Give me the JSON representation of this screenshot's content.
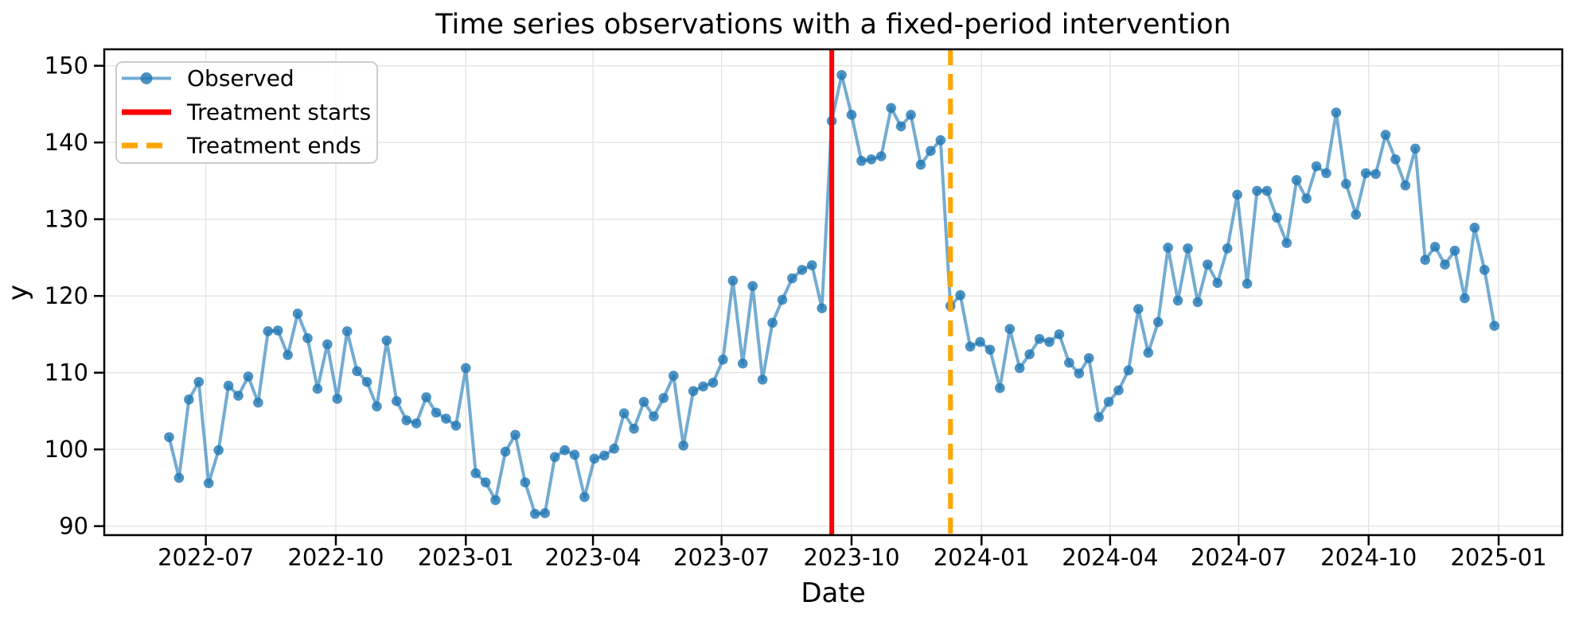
{
  "title": "Time series observations with a fixed-period intervention",
  "axes": {
    "x_label": "Date",
    "y_label": "y",
    "x_ticks": [
      "2022-07",
      "2022-10",
      "2023-01",
      "2023-04",
      "2023-07",
      "2023-10",
      "2024-01",
      "2024-04",
      "2024-07",
      "2024-10",
      "2025-01"
    ],
    "y_ticks": [
      90,
      100,
      110,
      120,
      130,
      140,
      150
    ]
  },
  "legend": {
    "items": [
      {
        "label": "Observed",
        "color": "#1f77b4",
        "style": "line-with-marker"
      },
      {
        "label": "Treatment starts",
        "color": "#ff0000",
        "style": "solid"
      },
      {
        "label": "Treatment ends",
        "color": "#ffa500",
        "style": "dashed"
      }
    ]
  },
  "chart_data": {
    "type": "line",
    "title": "Time series observations with a fixed-period intervention",
    "xlabel": "Date",
    "ylabel": "y",
    "grid": true,
    "legend_position": "upper left",
    "x_start_date": "2022-06-05",
    "x_freq_days": 7,
    "x_tick_labels": [
      "2022-07",
      "2022-10",
      "2023-01",
      "2023-04",
      "2023-07",
      "2023-10",
      "2024-01",
      "2024-04",
      "2024-07",
      "2024-10",
      "2025-01"
    ],
    "y_tick_values": [
      90,
      100,
      110,
      120,
      130,
      140,
      150
    ],
    "ylim": [
      88.8,
      152.1
    ],
    "series": [
      {
        "name": "Observed",
        "color": "#1f77b4",
        "values": [
          101.6,
          96.3,
          106.5,
          108.8,
          95.6,
          99.9,
          108.3,
          107.0,
          109.5,
          106.1,
          115.4,
          115.5,
          112.3,
          117.7,
          114.5,
          107.9,
          113.7,
          106.6,
          115.4,
          110.2,
          108.8,
          105.6,
          114.2,
          106.3,
          103.8,
          103.4,
          106.8,
          104.8,
          104.0,
          103.1,
          110.6,
          96.9,
          95.7,
          93.4,
          99.7,
          101.9,
          95.7,
          91.6,
          91.7,
          99.0,
          99.9,
          99.3,
          93.8,
          98.8,
          99.2,
          100.1,
          104.7,
          102.7,
          106.2,
          104.3,
          106.7,
          109.6,
          100.5,
          107.6,
          108.2,
          108.7,
          111.7,
          122.0,
          111.2,
          121.3,
          109.1,
          116.5,
          119.5,
          122.3,
          123.4,
          124.0,
          118.4,
          142.8,
          148.8,
          143.6,
          137.6,
          137.8,
          138.2,
          144.5,
          142.1,
          143.6,
          137.1,
          138.9,
          140.3,
          118.7,
          120.1,
          113.4,
          114.0,
          113.0,
          108.0,
          115.7,
          110.6,
          112.4,
          114.4,
          114.0,
          115.0,
          111.3,
          109.9,
          111.9,
          104.2,
          106.2,
          107.7,
          110.3,
          118.3,
          112.6,
          116.6,
          126.3,
          119.4,
          126.2,
          119.2,
          124.1,
          121.7,
          126.2,
          133.2,
          121.6,
          133.7,
          133.7,
          130.2,
          126.9,
          135.1,
          132.7,
          136.9,
          136.0,
          143.9,
          134.6,
          130.6,
          136.0,
          135.9,
          141.0,
          137.8,
          134.4,
          139.2,
          124.7,
          126.4,
          124.1,
          125.9,
          119.7,
          128.9,
          123.4,
          116.1
        ]
      }
    ],
    "vlines": [
      {
        "name": "Treatment starts",
        "date": "2023-09-17",
        "color": "#ff0000",
        "style": "solid"
      },
      {
        "name": "Treatment ends",
        "date": "2023-12-10",
        "color": "#ffa500",
        "style": "dashed"
      }
    ]
  }
}
